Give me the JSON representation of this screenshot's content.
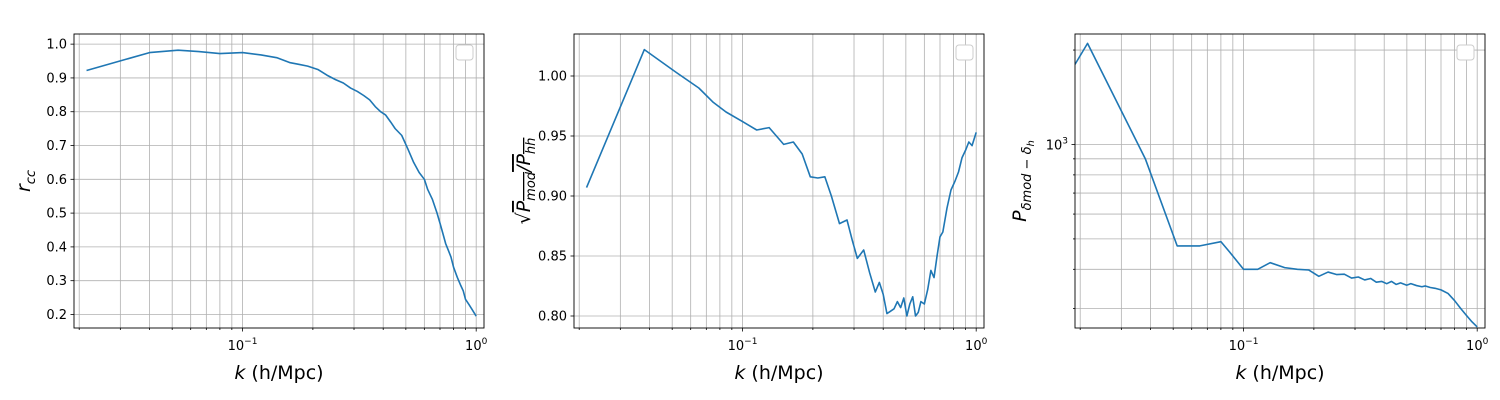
{
  "colors": {
    "line": "#1f77b4",
    "grid": "#b0b0b0",
    "axes": "#000000",
    "legend_border": "#cccccc"
  },
  "chart_data": [
    {
      "type": "line",
      "xscale": "log",
      "yscale": "linear",
      "xlim": [
        0.019,
        1.08
      ],
      "ylim": [
        0.16,
        1.03
      ],
      "grid": true,
      "legend": {
        "placement": "top-right",
        "entries": []
      },
      "xlabel_parts": [
        "k",
        " (h/Mpc)"
      ],
      "ylabel_parts": [
        "r",
        "cc"
      ],
      "xticks": [
        {
          "value": 0.1,
          "base": "10",
          "exp": "−1"
        },
        {
          "value": 1,
          "base": "10",
          "exp": "0"
        }
      ],
      "yticks": [
        0.2,
        0.3,
        0.4,
        0.5,
        0.6,
        0.7,
        0.8,
        0.9,
        1.0
      ],
      "ytick_labels": [
        "0.2",
        "0.3",
        "0.4",
        "0.5",
        "0.6",
        "0.7",
        "0.8",
        "0.9",
        "1.0"
      ],
      "series": [
        {
          "x": [
            0.0215,
            0.04,
            0.053,
            0.065,
            0.08,
            0.1,
            0.12,
            0.14,
            0.16,
            0.175,
            0.19,
            0.21,
            0.23,
            0.25,
            0.27,
            0.29,
            0.31,
            0.33,
            0.35,
            0.37,
            0.39,
            0.41,
            0.43,
            0.45,
            0.48,
            0.51,
            0.54,
            0.57,
            0.6,
            0.62,
            0.65,
            0.68,
            0.7,
            0.72,
            0.74,
            0.76,
            0.78,
            0.8,
            0.83,
            0.86,
            0.88,
            0.9,
            0.93,
            0.96,
            1.0
          ],
          "y": [
            0.922,
            0.975,
            0.982,
            0.978,
            0.972,
            0.975,
            0.968,
            0.96,
            0.945,
            0.94,
            0.935,
            0.925,
            0.908,
            0.895,
            0.885,
            0.87,
            0.86,
            0.848,
            0.835,
            0.815,
            0.8,
            0.79,
            0.77,
            0.75,
            0.73,
            0.69,
            0.65,
            0.62,
            0.6,
            0.57,
            0.54,
            0.5,
            0.47,
            0.44,
            0.41,
            0.39,
            0.37,
            0.34,
            0.31,
            0.285,
            0.27,
            0.245,
            0.23,
            0.215,
            0.195
          ]
        }
      ]
    },
    {
      "type": "line",
      "xscale": "log",
      "yscale": "linear",
      "xlim": [
        0.019,
        1.08
      ],
      "ylim": [
        0.79,
        1.035
      ],
      "grid": true,
      "legend": {
        "placement": "top-right",
        "entries": []
      },
      "xlabel_parts": [
        "k",
        " (h/Mpc)"
      ],
      "ylabel_parts": [
        "P",
        "mod",
        "/",
        "P",
        "hh"
      ],
      "xticks": [
        {
          "value": 0.1,
          "base": "10",
          "exp": "−1"
        },
        {
          "value": 1,
          "base": "10",
          "exp": "0"
        }
      ],
      "yticks": [
        0.8,
        0.85,
        0.9,
        0.95,
        1.0
      ],
      "ytick_labels": [
        "0.80",
        "0.85",
        "0.90",
        "0.95",
        "1.00"
      ],
      "series": [
        {
          "x": [
            0.0215,
            0.038,
            0.052,
            0.065,
            0.075,
            0.085,
            0.1,
            0.115,
            0.13,
            0.15,
            0.165,
            0.18,
            0.195,
            0.21,
            0.225,
            0.24,
            0.26,
            0.28,
            0.295,
            0.31,
            0.33,
            0.35,
            0.37,
            0.385,
            0.4,
            0.415,
            0.43,
            0.445,
            0.46,
            0.475,
            0.49,
            0.505,
            0.52,
            0.535,
            0.55,
            0.565,
            0.58,
            0.6,
            0.62,
            0.64,
            0.66,
            0.68,
            0.7,
            0.72,
            0.75,
            0.78,
            0.81,
            0.84,
            0.87,
            0.9,
            0.93,
            0.96,
            1.0
          ],
          "y": [
            0.907,
            1.022,
            1.003,
            0.99,
            0.978,
            0.97,
            0.962,
            0.955,
            0.957,
            0.943,
            0.945,
            0.935,
            0.916,
            0.915,
            0.916,
            0.9,
            0.877,
            0.88,
            0.863,
            0.848,
            0.855,
            0.836,
            0.82,
            0.828,
            0.818,
            0.802,
            0.804,
            0.806,
            0.812,
            0.807,
            0.815,
            0.8,
            0.81,
            0.816,
            0.8,
            0.803,
            0.812,
            0.81,
            0.822,
            0.838,
            0.832,
            0.85,
            0.866,
            0.87,
            0.89,
            0.905,
            0.912,
            0.92,
            0.932,
            0.938,
            0.945,
            0.942,
            0.953
          ]
        }
      ]
    },
    {
      "type": "line",
      "xscale": "log",
      "yscale": "log",
      "xlim": [
        0.019,
        1.08
      ],
      "ylim": [
        260,
        2250
      ],
      "grid": true,
      "legend": {
        "placement": "top-right",
        "entries": []
      },
      "xlabel_parts": [
        "k",
        " (h/Mpc)"
      ],
      "ylabel_parts": [
        "P",
        "δmod − δ",
        "h"
      ],
      "xticks": [
        {
          "value": 0.1,
          "base": "10",
          "exp": "−1"
        },
        {
          "value": 1,
          "base": "10",
          "exp": "0"
        }
      ],
      "yticks": [
        1000
      ],
      "ytick_labels": [
        {
          "base": "10",
          "exp": "3"
        }
      ],
      "series": [
        {
          "x": [
            0.019,
            0.0215,
            0.038,
            0.052,
            0.065,
            0.08,
            0.087,
            0.1,
            0.115,
            0.13,
            0.15,
            0.17,
            0.19,
            0.21,
            0.23,
            0.25,
            0.27,
            0.29,
            0.31,
            0.33,
            0.35,
            0.37,
            0.39,
            0.41,
            0.43,
            0.45,
            0.47,
            0.5,
            0.52,
            0.55,
            0.58,
            0.6,
            0.63,
            0.66,
            0.7,
            0.75,
            0.8,
            0.85,
            0.9,
            0.95,
            1.0
          ],
          "y": [
            1800,
            2100,
            900,
            475,
            475,
            490,
            455,
            400,
            400,
            420,
            405,
            400,
            398,
            380,
            392,
            385,
            386,
            375,
            378,
            370,
            374,
            364,
            366,
            360,
            366,
            358,
            362,
            356,
            360,
            355,
            352,
            354,
            350,
            348,
            344,
            335,
            318,
            300,
            285,
            272,
            262
          ]
        }
      ]
    }
  ]
}
